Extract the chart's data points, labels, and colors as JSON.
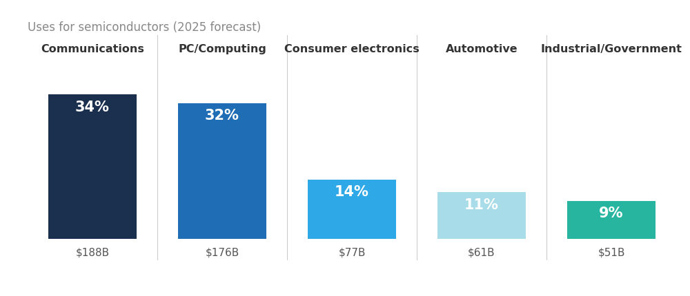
{
  "title": "Uses for semiconductors (2025 forecast)",
  "categories": [
    "Communications",
    "PC/Computing",
    "Consumer electronics",
    "Automotive",
    "Industrial/Government"
  ],
  "values": [
    34,
    32,
    14,
    11,
    9
  ],
  "dollar_labels": [
    "$188B",
    "$176B",
    "$77B",
    "$61B",
    "$51B"
  ],
  "pct_labels": [
    "34%",
    "32%",
    "14%",
    "11%",
    "9%"
  ],
  "bar_colors": [
    "#1b2f4e",
    "#1e6db5",
    "#2fa8e8",
    "#a8dce9",
    "#27b5a0"
  ],
  "background_color": "#ffffff",
  "title_color": "#888888",
  "category_label_color": "#333333",
  "dollar_label_color": "#555555",
  "pct_label_color": "#ffffff",
  "divider_color": "#cccccc",
  "bar_width": 0.68,
  "max_val": 34,
  "title_fontsize": 12,
  "category_fontsize": 11.5,
  "pct_fontsize": 15,
  "dollar_fontsize": 11
}
